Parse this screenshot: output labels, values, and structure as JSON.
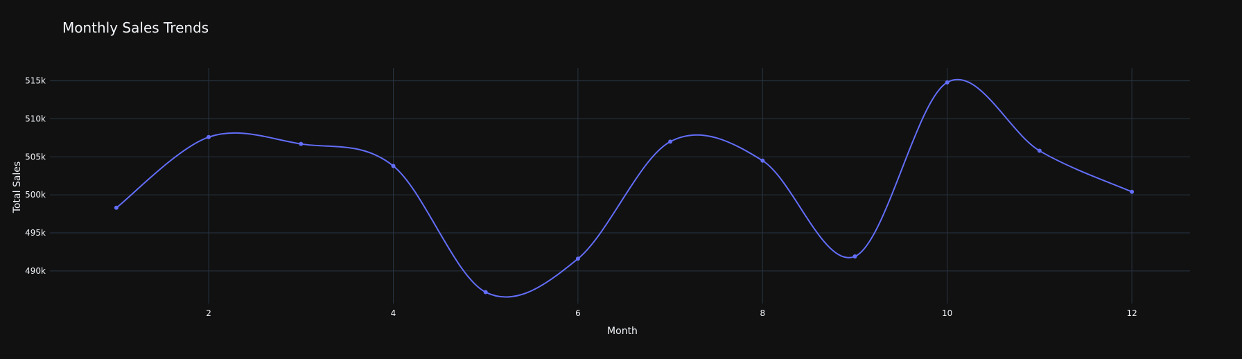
{
  "chart_data": {
    "type": "line",
    "title": "Monthly Sales Trends",
    "xlabel": "Month",
    "ylabel": "Total Sales",
    "x": [
      1,
      2,
      3,
      4,
      5,
      6,
      7,
      8,
      9,
      10,
      11,
      12
    ],
    "series": [
      {
        "values": [
          498300,
          507600,
          506700,
          503800,
          487200,
          491600,
          507000,
          504500,
          491900,
          514800,
          505800,
          500400
        ]
      }
    ],
    "xlim": [
      0.28,
      12.63
    ],
    "ylim": [
      485700,
      516700
    ],
    "x_ticks": [
      2,
      4,
      6,
      8,
      10,
      12
    ],
    "x_tick_labels": [
      "2",
      "4",
      "6",
      "8",
      "10",
      "12"
    ],
    "y_ticks": [
      490000,
      495000,
      500000,
      505000,
      510000,
      515000
    ],
    "y_tick_labels": [
      "490k",
      "495k",
      "500k",
      "505k",
      "510k",
      "515k"
    ],
    "grid": true,
    "line_shape": "spline",
    "markers": true,
    "theme": "dark"
  },
  "colors": {
    "background": "#111111",
    "grid": "#283442",
    "line": "#636efa",
    "text": "#f2f5fa"
  }
}
